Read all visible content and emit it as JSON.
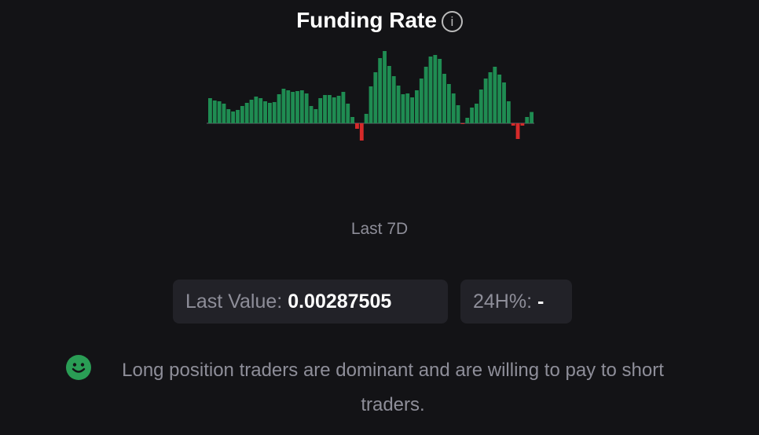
{
  "header": {
    "title": "Funding Rate",
    "info_icon": "info-circle-icon"
  },
  "chart_data": {
    "type": "bar",
    "title": "Funding Rate",
    "period": "Last 7D",
    "colors": {
      "positive": "#1f8c52",
      "negative": "#d62a2a",
      "baseline": "#4a4a50"
    },
    "values": [
      0.0064,
      0.0058,
      0.0056,
      0.005,
      0.0036,
      0.003,
      0.0034,
      0.0044,
      0.0052,
      0.006,
      0.0068,
      0.0064,
      0.0056,
      0.0052,
      0.0054,
      0.0074,
      0.0088,
      0.0084,
      0.008,
      0.0082,
      0.0084,
      0.0076,
      0.0044,
      0.0036,
      0.0064,
      0.0072,
      0.0072,
      0.0066,
      0.007,
      0.008,
      0.005,
      0.0016,
      -0.0014,
      -0.0044,
      0.0024,
      0.0094,
      0.013,
      0.0166,
      0.0184,
      0.0146,
      0.012,
      0.0096,
      0.0074,
      0.0076,
      0.0066,
      0.0084,
      0.0114,
      0.0144,
      0.017,
      0.0174,
      0.0164,
      0.0126,
      0.01,
      0.0076,
      0.0046,
      -0.0002,
      0.0014,
      0.004,
      0.005,
      0.0086,
      0.0114,
      0.013,
      0.0144,
      0.0124,
      0.0104,
      0.0056,
      -0.0006,
      -0.004,
      -0.0006,
      0.0016,
      0.00287505
    ]
  },
  "stats": {
    "last_value_label": "Last Value:",
    "last_value": "0.00287505",
    "change_label": "24H%:",
    "change_value": "-"
  },
  "sentiment": {
    "icon": "smiley-icon",
    "color": "#2a9d55",
    "message": "Long position traders are dominant and are willing to pay to short traders."
  }
}
